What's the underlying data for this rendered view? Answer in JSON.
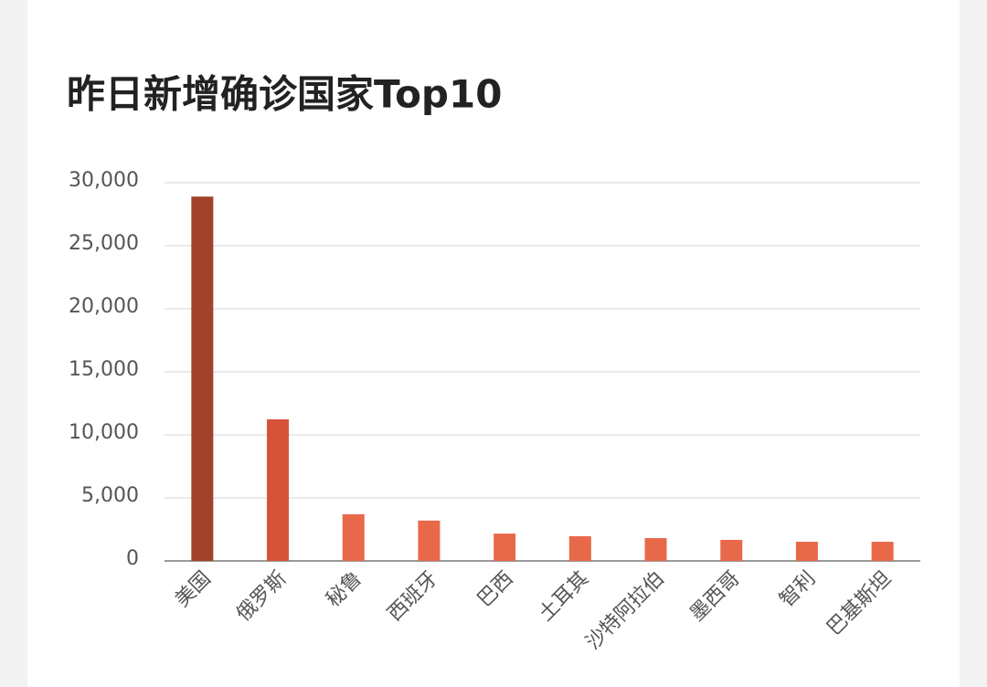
{
  "chart_data": {
    "type": "bar",
    "title": "昨日新增确诊国家Top10",
    "categories": [
      "美国",
      "俄罗斯",
      "秘鲁",
      "西班牙",
      "巴西",
      "土耳其",
      "沙特阿拉伯",
      "墨西哥",
      "智利",
      "巴基斯坦"
    ],
    "values": [
      28900,
      11230,
      3700,
      3200,
      2170,
      1960,
      1810,
      1670,
      1520,
      1520
    ],
    "colors": [
      "#a2422c",
      "#d6533a",
      "#e8694a",
      "#e8694a",
      "#e8694a",
      "#e8694a",
      "#e8694a",
      "#e8694a",
      "#e8694a",
      "#e8694a"
    ],
    "ylim": [
      0,
      30000
    ],
    "yticks": [
      0,
      {
        "value": 5000,
        "label": "5,000"
      },
      {
        "value": 10000,
        "label": "10,000"
      },
      {
        "value": 15000,
        "label": "15,000"
      },
      {
        "value": 20000,
        "label": "20,000"
      },
      {
        "value": 25000,
        "label": "25,000"
      },
      {
        "value": 30000,
        "label": "30,000"
      }
    ],
    "grid": true
  }
}
